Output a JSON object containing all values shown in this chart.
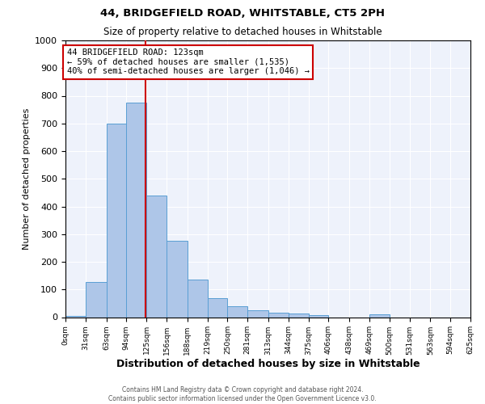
{
  "title": "44, BRIDGEFIELD ROAD, WHITSTABLE, CT5 2PH",
  "subtitle": "Size of property relative to detached houses in Whitstable",
  "xlabel": "Distribution of detached houses by size in Whitstable",
  "ylabel": "Number of detached properties",
  "bin_edges": [
    0,
    31,
    63,
    94,
    125,
    156,
    188,
    219,
    250,
    281,
    313,
    344,
    375,
    406,
    438,
    469,
    500,
    531,
    563,
    594,
    625
  ],
  "bin_labels": [
    "0sqm",
    "31sqm",
    "63sqm",
    "94sqm",
    "125sqm",
    "156sqm",
    "188sqm",
    "219sqm",
    "250sqm",
    "281sqm",
    "313sqm",
    "344sqm",
    "375sqm",
    "406sqm",
    "438sqm",
    "469sqm",
    "500sqm",
    "531sqm",
    "563sqm",
    "594sqm",
    "625sqm"
  ],
  "counts": [
    5,
    128,
    700,
    775,
    440,
    275,
    135,
    70,
    40,
    25,
    15,
    12,
    8,
    0,
    0,
    10,
    0,
    0,
    0,
    0
  ],
  "bar_color": "#aec6e8",
  "bar_edge_color": "#5a9fd4",
  "property_value": 123,
  "property_label": "44 BRIDGEFIELD ROAD: 123sqm",
  "annotation_line1": "← 59% of detached houses are smaller (1,535)",
  "annotation_line2": "40% of semi-detached houses are larger (1,046) →",
  "vline_color": "#cc0000",
  "annotation_box_edge_color": "#cc0000",
  "ylim": [
    0,
    1000
  ],
  "bg_color": "#eef2fb",
  "footer_line1": "Contains HM Land Registry data © Crown copyright and database right 2024.",
  "footer_line2": "Contains public sector information licensed under the Open Government Licence v3.0."
}
